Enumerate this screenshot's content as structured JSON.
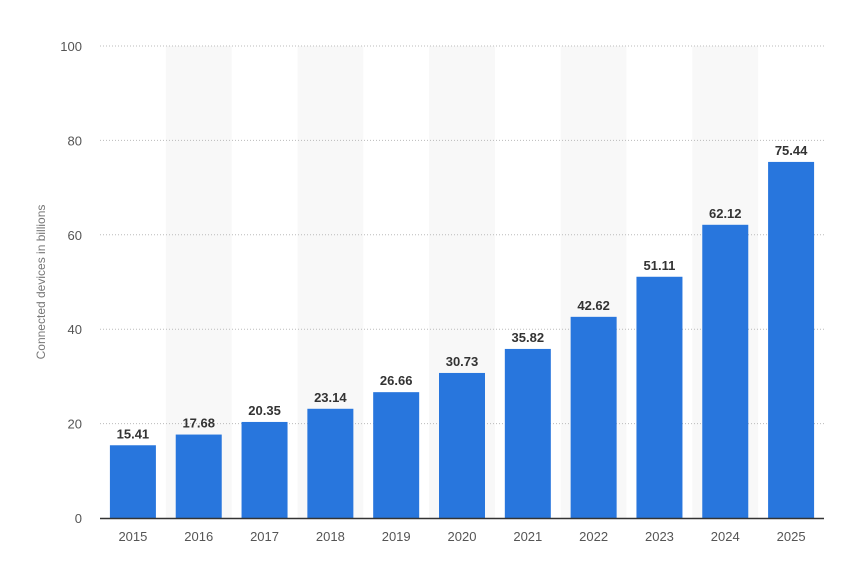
{
  "chart_data": {
    "type": "bar",
    "categories": [
      "2015",
      "2016",
      "2017",
      "2018",
      "2019",
      "2020",
      "2021",
      "2022",
      "2023",
      "2024",
      "2025"
    ],
    "values": [
      15.41,
      17.68,
      20.35,
      23.14,
      26.66,
      30.73,
      35.82,
      42.62,
      51.11,
      62.12,
      75.44
    ],
    "value_labels": [
      "15.41",
      "17.68",
      "20.35",
      "23.14",
      "26.66",
      "30.73",
      "35.82",
      "42.62",
      "51.11",
      "62.12",
      "75.44"
    ],
    "ylabel": "Connected devices in billions",
    "ylim": [
      0,
      100
    ],
    "yticks": [
      "0",
      "20",
      "40",
      "60",
      "80",
      "100"
    ],
    "grid": true,
    "colors": {
      "bar": "#2876dd",
      "band": "#f8f8f8",
      "grid": "#bbbbbb",
      "axis": "#333333"
    }
  }
}
